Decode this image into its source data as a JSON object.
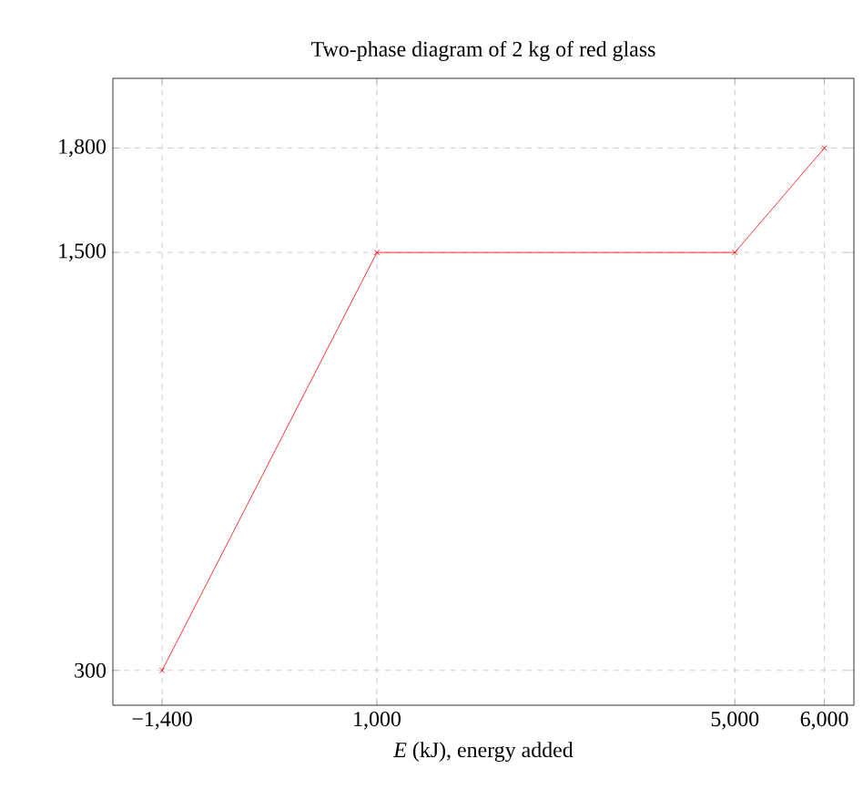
{
  "chart_data": {
    "type": "line",
    "title": "Two-phase diagram of 2 kg of red glass",
    "xlabel": "*E* (kJ), energy added",
    "x": [
      -1400,
      1000,
      5000,
      6000
    ],
    "series": [
      {
        "color": "#ff0000",
        "values": [
          300,
          1500,
          1500,
          1800
        ]
      }
    ],
    "xlim": [
      -1950,
      6330
    ],
    "ylim": [
      200,
      2000
    ],
    "xticks": [
      {
        "value": -1400,
        "label": "−1,400"
      },
      {
        "value": 1000,
        "label": "1,000"
      },
      {
        "value": 5000,
        "label": "5,000"
      },
      {
        "value": 6000,
        "label": "6,000"
      }
    ],
    "yticks": [
      300,
      {
        "value": 1500,
        "label": "1,500"
      },
      {
        "value": 1800,
        "label": "1,800"
      }
    ],
    "grid": true,
    "marker": "cross",
    "line_style": "solid"
  }
}
